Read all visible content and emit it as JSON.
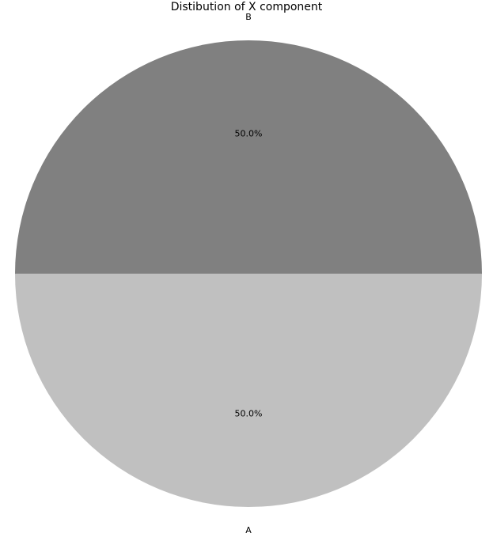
{
  "chart_data": {
    "type": "pie",
    "title": "Distibution of X component",
    "slices": [
      {
        "label": "A",
        "value": 50.0,
        "pct_label": "50.0%",
        "color": "#c0c0c0"
      },
      {
        "label": "B",
        "value": 50.0,
        "pct_label": "50.0%",
        "color": "#808080"
      }
    ],
    "start_angle_deg": 180,
    "direction": "counterclockwise",
    "legend": "none"
  }
}
